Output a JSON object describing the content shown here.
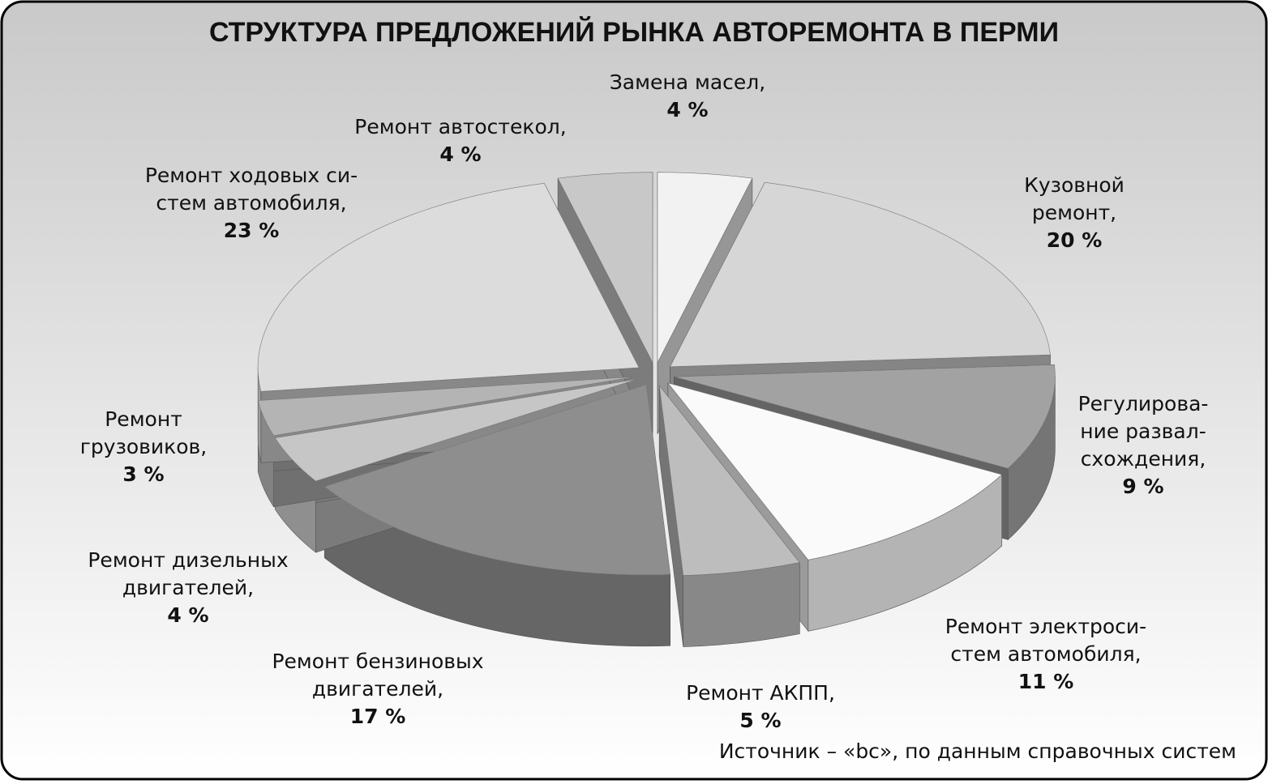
{
  "chart_data": {
    "type": "pie3d",
    "title": "СТРУКТУРА ПРЕДЛОЖЕНИЙ РЫНКА АВТОРЕМОНТА В ПЕРМИ",
    "categories": [
      [
        "Замена масел,"
      ],
      [
        "Кузовной",
        "ремонт,"
      ],
      [
        "Регулирова-",
        "ние развал-",
        "схождения,"
      ],
      [
        "Ремонт электроси-",
        "стем автомобиля,"
      ],
      [
        "Ремонт АКПП,"
      ],
      [
        "Ремонт бензиновых",
        "двигателей,"
      ],
      [
        "Ремонт дизельных",
        "двигателей,"
      ],
      [
        "Ремонт",
        "грузовиков,"
      ],
      [
        "Ремонт ходовых си-",
        "стем автомобиля,"
      ],
      [
        "Ремонт автостекол,"
      ]
    ],
    "values": [
      4,
      20,
      9,
      11,
      5,
      17,
      4,
      3,
      23,
      4
    ],
    "value_labels": [
      "4 %",
      "20 %",
      "9 %",
      "11 %",
      "5 %",
      "17 %",
      "4 %",
      "3 %",
      "23 %",
      "4 %"
    ],
    "colors": [
      "#f2f2f2",
      "#d6d6d6",
      "#a2a2a2",
      "#fafafa",
      "#bdbdbd",
      "#8e8e8e",
      "#c6c6c6",
      "#b4b4b4",
      "#dcdcdc",
      "#c8c8c8"
    ],
    "source": "Источник – «bc», по данным справочных систем"
  }
}
